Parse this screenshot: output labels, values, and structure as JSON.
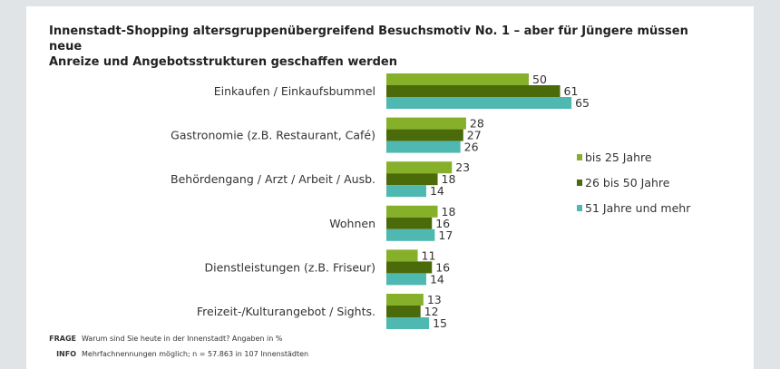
{
  "title_line1": "Innenstadt-Shopping altersgruppenübergreifend Besuchsmotiv No. 1 – aber für Jüngere müssen neue",
  "title_line2": "Anreize und Angebotsstrukturen geschaffen werden",
  "footer": {
    "frage_key": "FRAGE",
    "frage_text": "Warum sind Sie heute in der Innenstadt? Angaben in %",
    "info_key": "INFO",
    "info_text": "Mehrfachnennungen möglich; n = 57.863 in 107 Innenstädten"
  },
  "chart_data": {
    "type": "bar",
    "orientation": "horizontal",
    "title": "Innenstadt-Shopping altersgruppenübergreifend Besuchsmotiv No. 1 – aber für Jüngere müssen neue Anreize und Angebotsstrukturen geschaffen werden",
    "xlabel": "",
    "ylabel": "",
    "unit": "%",
    "xlim": [
      0,
      70
    ],
    "grid": false,
    "legend_position": "right",
    "categories": [
      "Einkaufen / Einkaufsbummel",
      "Gastronomie (z.B. Restaurant, Café)",
      "Behördengang / Arzt / Arbeit / Ausb.",
      "Wohnen",
      "Dienstleistungen (z.B. Friseur)",
      "Freizeit-/Kulturangebot / Sights."
    ],
    "series": [
      {
        "name": "bis 25 Jahre",
        "color": "#86b02a",
        "values": [
          50,
          28,
          23,
          18,
          11,
          13
        ]
      },
      {
        "name": "26 bis 50 Jahre",
        "color": "#4b6b0b",
        "values": [
          61,
          27,
          18,
          16,
          16,
          12
        ]
      },
      {
        "name": "51 Jahre und mehr",
        "color": "#4fb8b0",
        "values": [
          65,
          26,
          14,
          17,
          14,
          15
        ]
      }
    ]
  }
}
